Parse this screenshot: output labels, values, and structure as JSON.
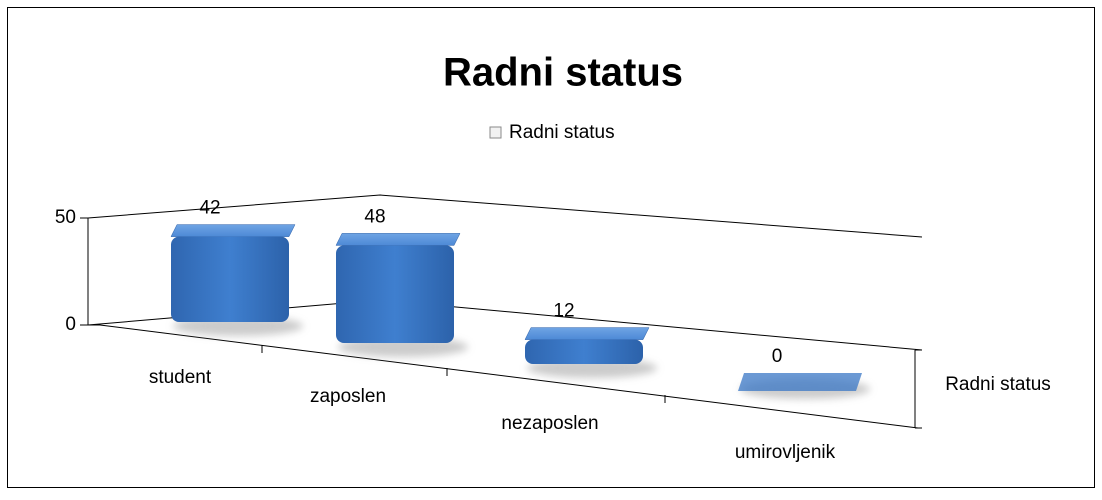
{
  "chart_data": {
    "type": "bar3d",
    "title": "Radni status",
    "categories": [
      "student",
      "zaposlen",
      "nezaposlen",
      "umirovljenik"
    ],
    "series": [
      {
        "name": "Radni status",
        "color": "#3a77c6",
        "values": [
          42,
          48,
          12,
          0
        ]
      }
    ],
    "ylim": [
      0,
      50
    ],
    "yticks": [
      0,
      50
    ],
    "grid": true,
    "legend": "top"
  }
}
